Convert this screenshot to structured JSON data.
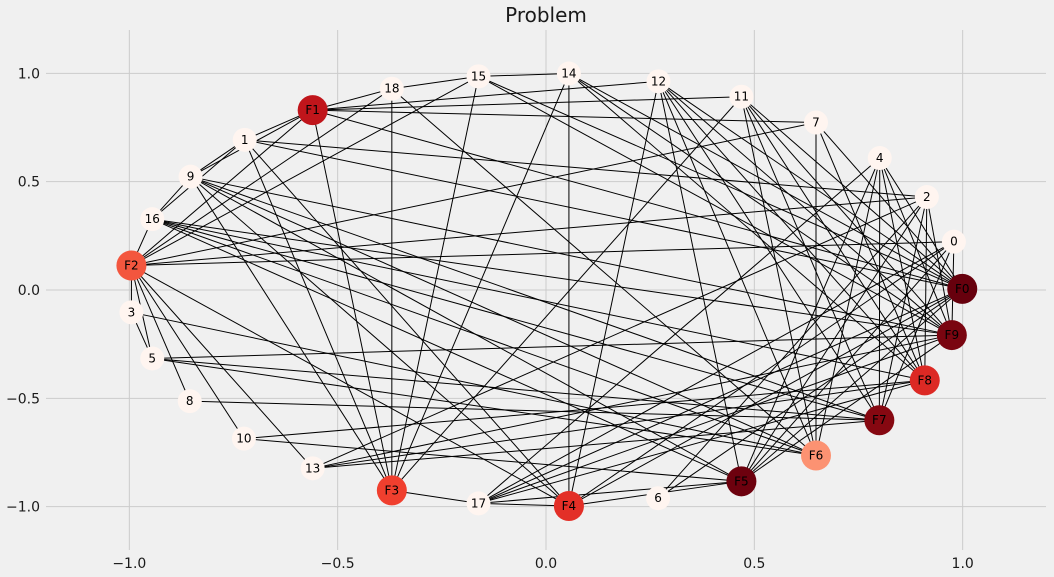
{
  "chart_data": {
    "type": "network",
    "title": "Problem",
    "xlim": [
      -1.2,
      1.2
    ],
    "ylim": [
      -1.2,
      1.2
    ],
    "grid": true,
    "x_ticks": [
      {
        "value": -1.0,
        "label": "−1.0"
      },
      {
        "value": -0.5,
        "label": "−0.5"
      },
      {
        "value": 0.0,
        "label": "0.0"
      },
      {
        "value": 0.5,
        "label": "0.5"
      },
      {
        "value": 1.0,
        "label": "1.0"
      }
    ],
    "y_ticks": [
      {
        "value": 1.0,
        "label": "1.0"
      },
      {
        "value": 0.5,
        "label": "0.5"
      },
      {
        "value": 0.0,
        "label": "0.0"
      },
      {
        "value": -0.5,
        "label": "−0.5"
      },
      {
        "value": -1.0,
        "label": "−1.0"
      }
    ],
    "colors": {
      "edge": "#000000",
      "node_light": "#fff5f0",
      "grid": "#cbcbcb"
    },
    "nodes": [
      {
        "id": "0",
        "x": 0.979,
        "y": 0.223,
        "color": "#fff5f0"
      },
      {
        "id": "2",
        "x": 0.914,
        "y": 0.429,
        "color": "#fff5f0"
      },
      {
        "id": "4",
        "x": 0.801,
        "y": 0.609,
        "color": "#fff5f0"
      },
      {
        "id": "7",
        "x": 0.648,
        "y": 0.773,
        "color": "#fff5f0"
      },
      {
        "id": "11",
        "x": 0.469,
        "y": 0.892,
        "color": "#fff5f0"
      },
      {
        "id": "12",
        "x": 0.27,
        "y": 0.963,
        "color": "#fff5f0"
      },
      {
        "id": "14",
        "x": 0.055,
        "y": 0.999,
        "color": "#fff5f0"
      },
      {
        "id": "15",
        "x": -0.162,
        "y": 0.986,
        "color": "#fff5f0"
      },
      {
        "id": "18",
        "x": -0.37,
        "y": 0.929,
        "color": "#fff5f0"
      },
      {
        "id": "F1",
        "x": -0.56,
        "y": 0.83,
        "color": "#c0151b"
      },
      {
        "id": "1",
        "x": -0.723,
        "y": 0.693,
        "color": "#fff5f0"
      },
      {
        "id": "9",
        "x": -0.853,
        "y": 0.523,
        "color": "#fff5f0"
      },
      {
        "id": "16",
        "x": -0.945,
        "y": 0.327,
        "color": "#fff5f0"
      },
      {
        "id": "F2",
        "x": -0.995,
        "y": 0.113,
        "color": "#f3563e"
      },
      {
        "id": "3",
        "x": -0.995,
        "y": -0.103,
        "color": "#fff5f0"
      },
      {
        "id": "5",
        "x": -0.945,
        "y": -0.316,
        "color": "#fff5f0"
      },
      {
        "id": "8",
        "x": -0.855,
        "y": -0.513,
        "color": "#fff5f0"
      },
      {
        "id": "10",
        "x": -0.725,
        "y": -0.686,
        "color": "#fff5f0"
      },
      {
        "id": "13",
        "x": -0.56,
        "y": -0.823,
        "color": "#fff5f0"
      },
      {
        "id": "F3",
        "x": -0.37,
        "y": -0.925,
        "color": "#f03f2e"
      },
      {
        "id": "17",
        "x": -0.162,
        "y": -0.985,
        "color": "#fff5f0"
      },
      {
        "id": "F4",
        "x": 0.055,
        "y": -0.997,
        "color": "#e32f27"
      },
      {
        "id": "6",
        "x": 0.269,
        "y": -0.961,
        "color": "#fff5f0"
      },
      {
        "id": "F5",
        "x": 0.469,
        "y": -0.883,
        "color": "#6d010e"
      },
      {
        "id": "F6",
        "x": 0.648,
        "y": -0.764,
        "color": "#fc9272"
      },
      {
        "id": "F7",
        "x": 0.8,
        "y": -0.601,
        "color": "#860811"
      },
      {
        "id": "F8",
        "x": 0.909,
        "y": -0.417,
        "color": "#dc2924"
      },
      {
        "id": "F9",
        "x": 0.974,
        "y": -0.208,
        "color": "#7a0510"
      },
      {
        "id": "F0",
        "x": 0.999,
        "y": 0.005,
        "color": "#67000d"
      }
    ],
    "edges": [
      [
        "F1",
        "18"
      ],
      [
        "F1",
        "1"
      ],
      [
        "F1",
        "12"
      ],
      [
        "F1",
        "11"
      ],
      [
        "F1",
        "7"
      ],
      [
        "F1",
        "F0"
      ],
      [
        "F1",
        "9"
      ],
      [
        "18",
        "15"
      ],
      [
        "18",
        "F3"
      ],
      [
        "18",
        "F6"
      ],
      [
        "15",
        "14"
      ],
      [
        "15",
        "F9"
      ],
      [
        "15",
        "F0"
      ],
      [
        "15",
        "F3"
      ],
      [
        "15",
        "F2"
      ],
      [
        "14",
        "F4"
      ],
      [
        "14",
        "F3"
      ],
      [
        "14",
        "F9"
      ],
      [
        "14",
        "F0"
      ],
      [
        "14",
        "F8"
      ],
      [
        "12",
        "F9"
      ],
      [
        "12",
        "F7"
      ],
      [
        "12",
        "F5"
      ],
      [
        "12",
        "F4"
      ],
      [
        "12",
        "F0"
      ],
      [
        "12",
        "F6"
      ],
      [
        "12",
        "F8"
      ],
      [
        "11",
        "F3"
      ],
      [
        "11",
        "F6"
      ],
      [
        "11",
        "F9"
      ],
      [
        "11",
        "F7"
      ],
      [
        "11",
        "F0"
      ],
      [
        "11",
        "F8"
      ],
      [
        "7",
        "F6"
      ],
      [
        "7",
        "F8"
      ],
      [
        "7",
        "F2"
      ],
      [
        "7",
        "F0"
      ],
      [
        "4",
        "F5"
      ],
      [
        "4",
        "F6"
      ],
      [
        "4",
        "17"
      ],
      [
        "4",
        "F9"
      ],
      [
        "4",
        "F7"
      ],
      [
        "4",
        "F0"
      ],
      [
        "4",
        "F8"
      ],
      [
        "2",
        "F2"
      ],
      [
        "2",
        "F9"
      ],
      [
        "2",
        "F7"
      ],
      [
        "2",
        "F5"
      ],
      [
        "2",
        "6"
      ],
      [
        "2",
        "13"
      ],
      [
        "2",
        "1"
      ],
      [
        "2",
        "F8"
      ],
      [
        "0",
        "F2"
      ],
      [
        "0",
        "F5"
      ],
      [
        "0",
        "F4"
      ],
      [
        "0",
        "17"
      ],
      [
        "0",
        "F9"
      ],
      [
        "0",
        "F7"
      ],
      [
        "1",
        "9"
      ],
      [
        "1",
        "F4"
      ],
      [
        "1",
        "F3"
      ],
      [
        "1",
        "F0"
      ],
      [
        "1",
        "16"
      ],
      [
        "9",
        "16"
      ],
      [
        "9",
        "F9"
      ],
      [
        "9",
        "F6"
      ],
      [
        "9",
        "F5"
      ],
      [
        "9",
        "F7"
      ],
      [
        "9",
        "F4"
      ],
      [
        "9",
        "F3"
      ],
      [
        "16",
        "F2"
      ],
      [
        "16",
        "F9"
      ],
      [
        "16",
        "F8"
      ],
      [
        "16",
        "F7"
      ],
      [
        "16",
        "F6"
      ],
      [
        "16",
        "F5"
      ],
      [
        "F2",
        "3"
      ],
      [
        "F2",
        "5"
      ],
      [
        "F2",
        "8"
      ],
      [
        "F2",
        "10"
      ],
      [
        "F2",
        "13"
      ],
      [
        "F2",
        "F4"
      ],
      [
        "F2",
        "F1"
      ],
      [
        "F2",
        "18"
      ],
      [
        "3",
        "5"
      ],
      [
        "3",
        "F6"
      ],
      [
        "5",
        "F9"
      ],
      [
        "5",
        "F6"
      ],
      [
        "5",
        "F7"
      ],
      [
        "8",
        "F7"
      ],
      [
        "10",
        "F8"
      ],
      [
        "10",
        "F5"
      ],
      [
        "13",
        "F9"
      ],
      [
        "13",
        "F8"
      ],
      [
        "13",
        "F7"
      ],
      [
        "F3",
        "17"
      ],
      [
        "F3",
        "F1"
      ],
      [
        "17",
        "F4"
      ],
      [
        "17",
        "F5"
      ],
      [
        "17",
        "F8"
      ],
      [
        "17",
        "F9"
      ],
      [
        "17",
        "F0"
      ],
      [
        "F4",
        "F5"
      ],
      [
        "F4",
        "F0"
      ],
      [
        "6",
        "F0"
      ],
      [
        "F5",
        "F0"
      ],
      [
        "F5",
        "F9"
      ]
    ]
  }
}
